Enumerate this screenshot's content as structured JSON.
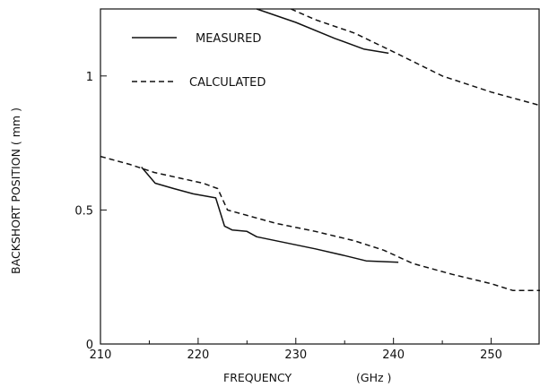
{
  "chart_data": {
    "type": "line",
    "title": "",
    "xlabel": "FREQUENCY",
    "xlabel_unit": "(GHz )",
    "ylabel": "BACKSHORT POSITION ( mm )",
    "xlim": [
      210,
      255
    ],
    "ylim": [
      0,
      1.25
    ],
    "xticks": [
      210,
      220,
      230,
      240,
      250
    ],
    "xtick_labels": [
      "210",
      "220",
      "230",
      "240",
      "250"
    ],
    "yticks": [
      0,
      0.5,
      1
    ],
    "ytick_labels": [
      "0",
      "0.5",
      "1"
    ],
    "grid": false,
    "legend_position": "top-left",
    "series": [
      {
        "name": "MEASURED",
        "style": "solid",
        "color": "#111111",
        "x": [
          214.2,
          215.6,
          217.5,
          219.5,
          221.8,
          222.7,
          223.5,
          225.0,
          226.0,
          228.0,
          232.0,
          235.0,
          237.2,
          240.5
        ],
        "y": [
          0.66,
          0.6,
          0.58,
          0.56,
          0.545,
          0.44,
          0.425,
          0.42,
          0.4,
          0.385,
          0.355,
          0.33,
          0.31,
          0.305
        ]
      },
      {
        "name": "MEASURED",
        "style": "solid",
        "color": "#111111",
        "x": [
          226.0,
          230.0,
          234.0,
          237.0,
          239.5
        ],
        "y": [
          1.25,
          1.2,
          1.14,
          1.1,
          1.085
        ]
      },
      {
        "name": "CALCULATED",
        "style": "dashed",
        "color": "#111111",
        "x": [
          210,
          213,
          215.5,
          218,
          220.5,
          222.0,
          223.0,
          225,
          228,
          232,
          236,
          239,
          242,
          246,
          250,
          252.2,
          255
        ],
        "y": [
          0.7,
          0.67,
          0.64,
          0.62,
          0.6,
          0.58,
          0.5,
          0.48,
          0.45,
          0.42,
          0.385,
          0.35,
          0.3,
          0.26,
          0.225,
          0.2,
          0.2
        ]
      },
      {
        "name": "CALCULATED",
        "style": "dashed",
        "color": "#111111",
        "x": [
          229.5,
          232,
          236,
          240,
          245,
          250,
          255
        ],
        "y": [
          1.25,
          1.21,
          1.16,
          1.09,
          1.0,
          0.94,
          0.89
        ]
      }
    ]
  }
}
